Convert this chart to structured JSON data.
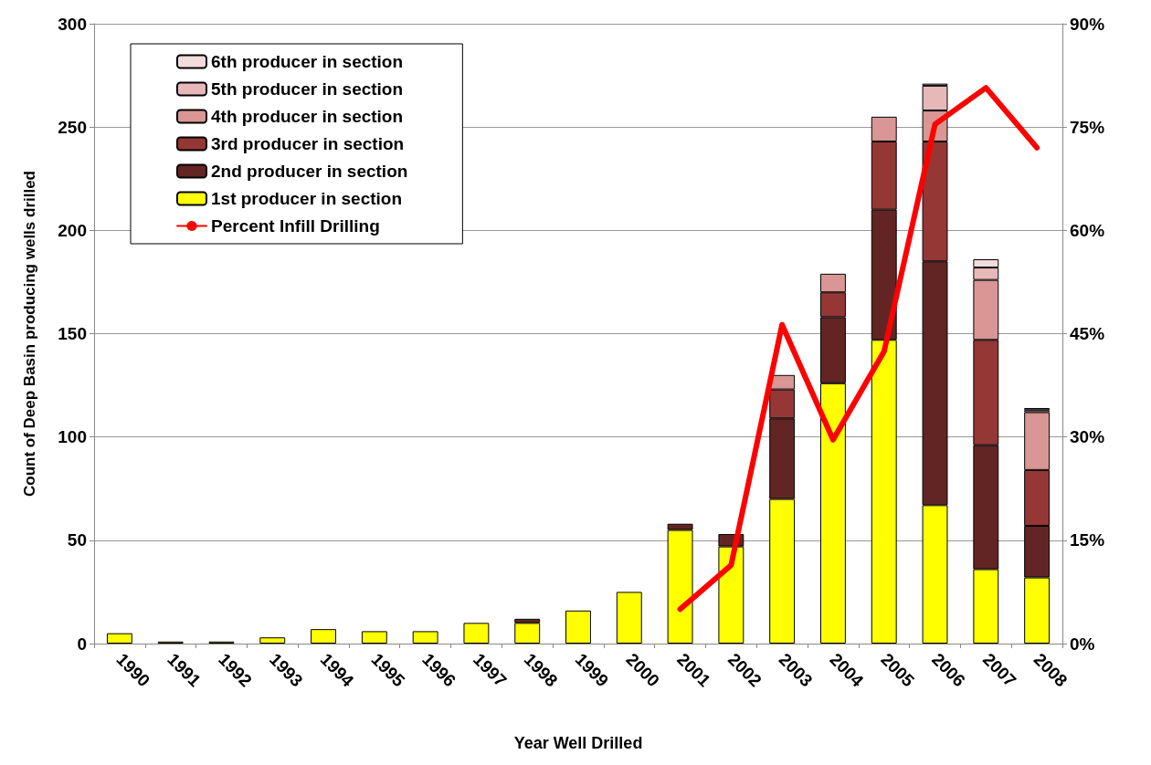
{
  "chart_data": {
    "type": "bar",
    "stacked": true,
    "xlabel": "Year Well Drilled",
    "ylabel": "Count of Deep Basin producing wells drilled",
    "categories": [
      "1990",
      "1991",
      "1992",
      "1993",
      "1994",
      "1995",
      "1996",
      "1997",
      "1998",
      "1999",
      "2000",
      "2001",
      "2002",
      "2003",
      "2004",
      "2005",
      "2006",
      "2007",
      "2008"
    ],
    "series": [
      {
        "name": "1st producer in section",
        "color": "#ffff00",
        "values": [
          5,
          1,
          1,
          3,
          7,
          6,
          6,
          10,
          10,
          16,
          25,
          55,
          47,
          70,
          126,
          147,
          67,
          36,
          32
        ]
      },
      {
        "name": "2nd producer in section",
        "color": "#632523",
        "values": [
          null,
          null,
          null,
          null,
          null,
          null,
          null,
          null,
          2,
          null,
          null,
          3,
          6,
          39,
          32,
          63,
          118,
          60,
          25
        ]
      },
      {
        "name": "3rd producer in section",
        "color": "#953735",
        "values": [
          null,
          null,
          null,
          null,
          null,
          null,
          null,
          null,
          null,
          null,
          null,
          null,
          null,
          14,
          12,
          33,
          58,
          51,
          27
        ]
      },
      {
        "name": "4th producer in section",
        "color": "#d99694",
        "values": [
          null,
          null,
          null,
          null,
          null,
          null,
          null,
          null,
          null,
          null,
          null,
          null,
          null,
          7,
          9,
          12,
          15,
          29,
          28
        ]
      },
      {
        "name": "5th producer in section",
        "color": "#e6b9b8",
        "values": [
          null,
          null,
          null,
          null,
          null,
          null,
          null,
          null,
          null,
          null,
          null,
          null,
          null,
          null,
          null,
          null,
          12,
          6,
          1
        ]
      },
      {
        "name": "6th producer in section",
        "color": "#f2dcdb",
        "values": [
          null,
          null,
          null,
          null,
          null,
          null,
          null,
          null,
          null,
          null,
          null,
          null,
          null,
          null,
          null,
          null,
          1,
          4,
          1
        ]
      },
      {
        "name": "Percent Infill Drilling",
        "type": "line",
        "axis": "y2",
        "color": "#ff0000",
        "marker": "none",
        "values": [
          null,
          null,
          null,
          null,
          null,
          null,
          null,
          null,
          null,
          null,
          null,
          5,
          11.4,
          46.3,
          29.6,
          42.4,
          75.4,
          80.7,
          72
        ]
      }
    ],
    "ylim": [
      0,
      300
    ],
    "yticks": [
      0,
      50,
      100,
      150,
      200,
      250,
      300
    ],
    "y2lim": [
      0,
      90
    ],
    "y2ticks": [
      {
        "value": 0,
        "label": "0%"
      },
      {
        "value": 15,
        "label": "15%"
      },
      {
        "value": 30,
        "label": "30%"
      },
      {
        "value": 45,
        "label": "45%"
      },
      {
        "value": 60,
        "label": "60%"
      },
      {
        "value": 75,
        "label": "75%"
      },
      {
        "value": 90,
        "label": "90%"
      }
    ],
    "grid": "y",
    "legend": "top left"
  }
}
